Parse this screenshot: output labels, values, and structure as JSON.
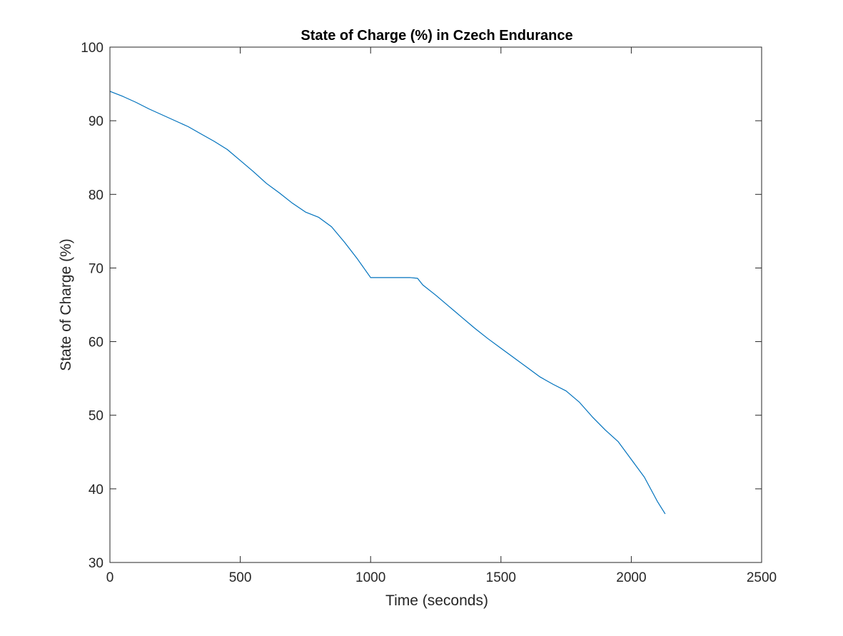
{
  "chart_data": {
    "type": "line",
    "title": "State of Charge (%) in Czech Endurance",
    "xlabel": "Time (seconds)",
    "ylabel": "State of Charge (%)",
    "xlim": [
      0,
      2500
    ],
    "ylim": [
      30,
      100
    ],
    "xticks": [
      0,
      500,
      1000,
      1500,
      2000,
      2500
    ],
    "yticks": [
      30,
      40,
      50,
      60,
      70,
      80,
      90,
      100
    ],
    "xtick_labels": [
      "0",
      "500",
      "1000",
      "1500",
      "2000",
      "2500"
    ],
    "ytick_labels": [
      "30",
      "40",
      "50",
      "60",
      "70",
      "80",
      "90",
      "100"
    ],
    "grid": false,
    "box": true,
    "series": [
      {
        "color": "#0072bd",
        "x": [
          0,
          50,
          100,
          150,
          200,
          250,
          300,
          350,
          400,
          450,
          500,
          550,
          600,
          650,
          700,
          750,
          800,
          850,
          900,
          950,
          1000,
          1050,
          1100,
          1150,
          1180,
          1200,
          1250,
          1300,
          1350,
          1400,
          1450,
          1500,
          1550,
          1600,
          1650,
          1700,
          1750,
          1800,
          1850,
          1900,
          1950,
          2000,
          2050,
          2100,
          2130
        ],
        "y": [
          94.0,
          93.3,
          92.5,
          91.6,
          90.8,
          90.0,
          89.2,
          88.2,
          87.2,
          86.1,
          84.6,
          83.1,
          81.5,
          80.2,
          78.8,
          77.6,
          76.9,
          75.6,
          73.5,
          71.2,
          68.7,
          68.7,
          68.7,
          68.7,
          68.6,
          67.7,
          66.3,
          64.8,
          63.3,
          61.8,
          60.4,
          59.1,
          57.8,
          56.5,
          55.2,
          54.2,
          53.3,
          51.8,
          49.8,
          48.0,
          46.4,
          44.0,
          41.6,
          38.3,
          36.6
        ]
      }
    ]
  }
}
